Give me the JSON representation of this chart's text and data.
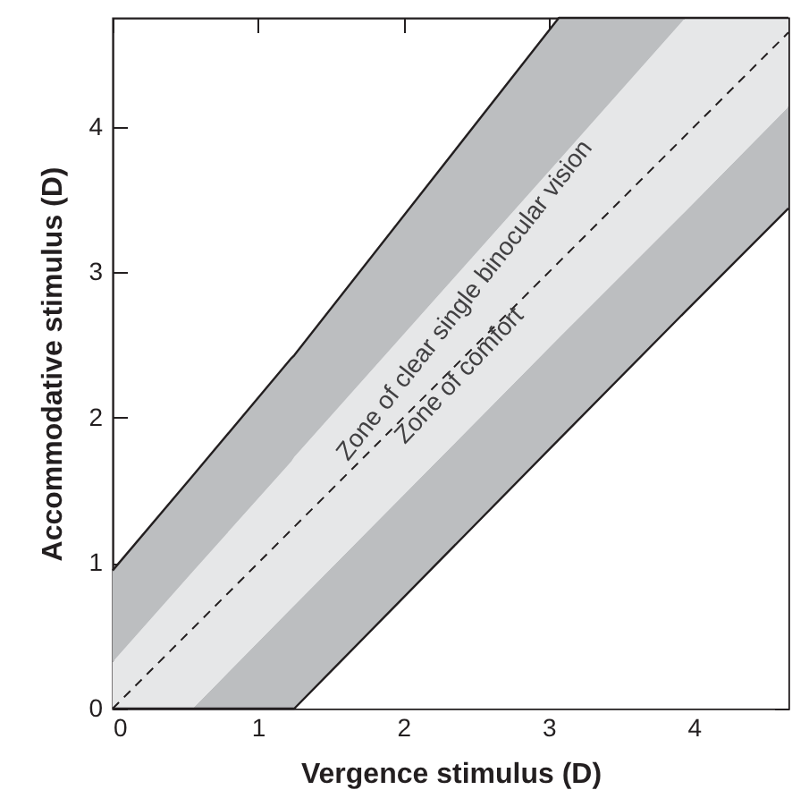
{
  "chart_data": {
    "type": "area",
    "stacked": true,
    "xlabel": "Vergence stimulus (D)",
    "ylabel": "Accommodative stimulus (D)",
    "xlim": [
      0,
      4.65
    ],
    "ylim": [
      0,
      4.75
    ],
    "xticks": [
      0,
      1,
      2,
      3,
      4
    ],
    "yticks": [
      0,
      1,
      2,
      3,
      4
    ],
    "grid": false,
    "x": [
      0,
      0.55,
      1.23,
      1.25,
      3.07,
      3.94,
      4.65
    ],
    "series": [
      {
        "color": "#ffffff",
        "line_style": "solid",
        "values": [
          0,
          0,
          0,
          0,
          1.85,
          2.73,
          3.44
        ]
      },
      {
        "color": "#bcbec0",
        "values": [
          0,
          0,
          0.69,
          0.71,
          0.7,
          0.69,
          0.7
        ]
      },
      {
        "color": "#e6e7e8",
        "values": [
          0.32,
          0.94,
          1.01,
          1.02,
          1.22,
          1.33,
          0.61
        ]
      },
      {
        "color": "#bcbec0",
        "line_style": "solid",
        "values": [
          0.63,
          0.66,
          0.71,
          0.7,
          0.98,
          0,
          0
        ]
      },
      {
        "type": "line",
        "color": "#231f20",
        "line_style": "dashed",
        "x": [
          0,
          4.65
        ],
        "values": [
          0,
          4.65
        ]
      }
    ],
    "annotations": [
      "Zone of clear single binocular vision",
      "Zone of comfort"
    ]
  }
}
